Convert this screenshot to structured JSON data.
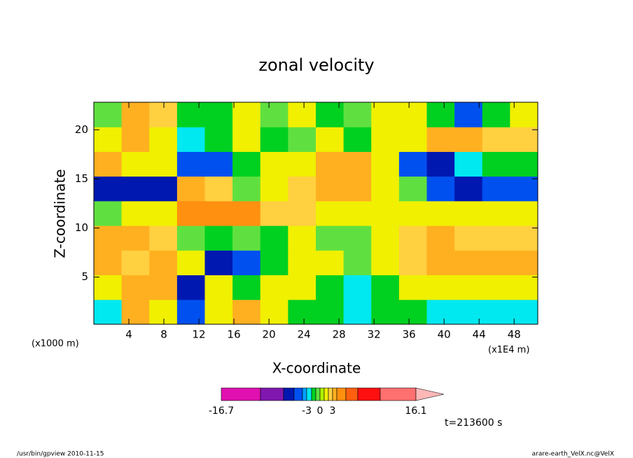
{
  "chart_data": {
    "type": "contour",
    "title": "zonal velocity",
    "x_label": "X-coordinate",
    "y_label": "Z-coordinate",
    "x_unit": "(x1E4 m)",
    "y_unit": "(x1000 m)",
    "annotation": "t=213600 s",
    "footer_left": "/usr/bin/gpview  2010-11-15",
    "footer_right": "arare-earth_VelX.nc@VelX",
    "xlim": [
      0,
      50.7
    ],
    "ylim": [
      0.2,
      22.8
    ],
    "xticks": [
      4,
      8,
      12,
      16,
      20,
      24,
      28,
      32,
      36,
      40,
      44,
      48
    ],
    "yticks": [
      5,
      10,
      15,
      20
    ],
    "levels": [
      -16.7,
      -12,
      -9,
      -6,
      -4,
      -3,
      -2,
      -1,
      0,
      1,
      2,
      3,
      4,
      6,
      9,
      12,
      16.1
    ],
    "colors": [
      "#e010b0",
      "#8018b0",
      "#0018b0",
      "#0050f0",
      "#00a0ff",
      "#00e8f0",
      "#00d020",
      "#60e040",
      "#b0f000",
      "#f0f000",
      "#ffd040",
      "#ffb020",
      "#ff9010",
      "#ff6010",
      "#ff1010",
      "#ff7070",
      "#ffb8b8"
    ],
    "colorbar_ticks": [
      -16.7,
      -3,
      0,
      3,
      16.1
    ],
    "z": [
      [
        -2.5,
        3,
        1.5,
        -5,
        1.5,
        3,
        1.5,
        -1.5,
        -1.5,
        -2.5,
        -1.5,
        -1.5,
        -2.5,
        -2.5,
        -2.5,
        -2.5
      ],
      [
        1.5,
        3.5,
        3,
        -7,
        1.5,
        -1.5,
        1.5,
        1.5,
        -1.5,
        -2.5,
        -1.5,
        1.5,
        1.5,
        1.5,
        1.5,
        1.5
      ],
      [
        3,
        2.5,
        3.5,
        1,
        -7,
        -5,
        -1.5,
        1.5,
        1.5,
        -0.5,
        1.5,
        2.5,
        3,
        3.5,
        3.5,
        3
      ],
      [
        3.5,
        3,
        2.5,
        -1,
        -1.5,
        -0.5,
        -1.5,
        1,
        -0.5,
        -0.5,
        1.5,
        2.5,
        3,
        2.5,
        2.5,
        2.5
      ],
      [
        -1,
        1,
        1.5,
        4.5,
        5,
        4,
        2.5,
        2,
        1.5,
        1.5,
        1.5,
        1,
        1,
        1,
        1.5,
        1
      ],
      [
        -8,
        -8,
        -7,
        3,
        2,
        -1,
        1.5,
        2.5,
        3.5,
        3,
        1.5,
        -1,
        -5,
        -7,
        -6,
        -5
      ],
      [
        3,
        1.5,
        1.5,
        -5,
        -5,
        -1.5,
        1.5,
        1.5,
        3,
        3.5,
        1.5,
        -4.5,
        -6.5,
        -2.5,
        -1.5,
        -1.5
      ],
      [
        1.5,
        3,
        1,
        -2.5,
        -1.5,
        1.5,
        -1.5,
        -1,
        1.5,
        -1.5,
        1.5,
        1.5,
        3.5,
        3.5,
        2.5,
        2.5
      ],
      [
        -1,
        3,
        2.5,
        -1.5,
        -1.5,
        1.5,
        -1,
        1.5,
        -1.5,
        -1,
        1.5,
        1,
        -1.5,
        -4.5,
        -1.5,
        1
      ]
    ]
  }
}
